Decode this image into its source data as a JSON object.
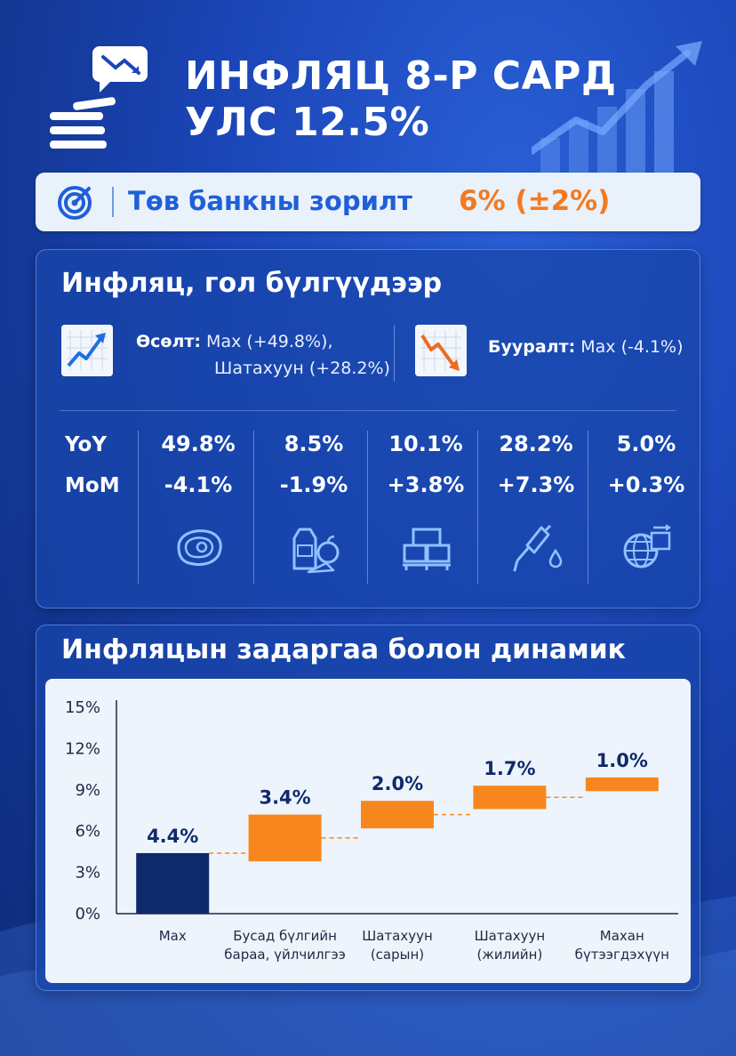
{
  "header": {
    "title_line1": "ИНФЛЯЦ 8-Р САРД",
    "title_line2": "УЛС 12.5%"
  },
  "target": {
    "label": "Төв банкны зорилт",
    "value": "6% (±2%)"
  },
  "groups_panel": {
    "title": "Инфляц, гол бүлгүүдээр",
    "increase": {
      "label": "Өсөлт:",
      "line1": "Мах (+49.8%),",
      "line2": "Шатахуун (+28.2%)"
    },
    "decrease": {
      "label": "Буурал т:",
      "text": "Мах (-4.1%)"
    },
    "row_labels": {
      "yoy": "YoY",
      "mom": "MoM"
    },
    "columns": [
      {
        "yoy": "49.8%",
        "mom": "-4.1%",
        "icon": "meat-icon"
      },
      {
        "yoy": "8.5%",
        "mom": "-1.9%",
        "icon": "groceries-icon"
      },
      {
        "yoy": "10.1%",
        "mom": "+3.8%",
        "icon": "goods-boxes-icon"
      },
      {
        "yoy": "28.2%",
        "mom": "+7.3%",
        "icon": "fuel-nozzle-icon"
      },
      {
        "yoy": "5.0%",
        "mom": "+0.3%",
        "icon": "global-services-icon"
      }
    ]
  },
  "chart_panel": {
    "title": "Инфляцын задаргаа болон динамик"
  },
  "chart_data": {
    "type": "bar",
    "subtype": "waterfall",
    "categories": [
      [
        "Мах"
      ],
      [
        "Бусад бүлгийн",
        "бараа, үйлчилгээ"
      ],
      [
        "Шатахуун",
        "(сарын)"
      ],
      [
        "Шатахуун",
        "(жилийн)"
      ],
      [
        "Махан",
        "бүтээгдэхүүн"
      ]
    ],
    "values": [
      4.4,
      3.4,
      2.0,
      1.7,
      1.0
    ],
    "value_labels": [
      "4.4%",
      "3.4%",
      "2.0%",
      "1.7%",
      "1.0%"
    ],
    "y_ticks": [
      "0%",
      "3%",
      "6%",
      "9%",
      "12%",
      "15%"
    ],
    "ylim": [
      0,
      15
    ],
    "colors": {
      "first_bar": "#0f2a6b",
      "step_bars": "#f7871d",
      "connector": "#f7871d"
    },
    "grid": false,
    "legend": "none"
  }
}
